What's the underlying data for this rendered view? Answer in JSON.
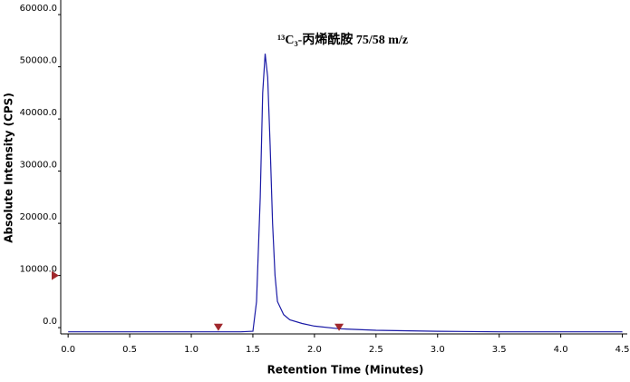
{
  "chart_data": {
    "type": "line",
    "title": "¹³C₃-丙烯酰胺 75/58 m/z",
    "x_label": "Retention Time (Minutes)",
    "y_label": "Absolute Intensity (CPS)",
    "x": [
      0,
      0.5,
      1.0,
      1.4,
      1.5,
      1.53,
      1.56,
      1.58,
      1.6,
      1.62,
      1.64,
      1.66,
      1.68,
      1.7,
      1.75,
      1.8,
      1.9,
      2.0,
      2.2,
      2.5,
      3.0,
      3.5,
      4.0,
      4.5
    ],
    "series": [
      {
        "color": "#1a1aa6",
        "values": [
          -800,
          -800,
          -800,
          -800,
          -700,
          5000,
          25000,
          45000,
          52500,
          48000,
          35000,
          20000,
          10000,
          5000,
          2500,
          1500,
          800,
          300,
          -200,
          -500,
          -700,
          -800,
          -800,
          -800
        ]
      }
    ],
    "peak_markers": {
      "x": [
        1.22,
        2.2
      ],
      "y": [
        -800,
        -800
      ],
      "color": "#a0282d"
    },
    "threshold_marker": {
      "y": 10000,
      "color": "#a0282d"
    },
    "xlim": [
      -0.06,
      4.54
    ],
    "ylim": [
      -1200,
      62800
    ],
    "xticks": [
      {
        "value": 0,
        "label": "0.0"
      },
      0.5,
      {
        "value": 1,
        "label": "1.0"
      },
      1.5,
      {
        "value": 2,
        "label": "2.0"
      },
      2.5,
      {
        "value": 3,
        "label": "3.0"
      },
      3.5,
      {
        "value": 4,
        "label": "4.0"
      },
      4.5
    ],
    "yticks": [
      {
        "value": 0,
        "label": "0.0"
      },
      {
        "value": 10000,
        "label": "10000.0"
      },
      {
        "value": 20000,
        "label": "20000.0"
      },
      {
        "value": 30000,
        "label": "30000.0"
      },
      {
        "value": 40000,
        "label": "40000.0"
      },
      {
        "value": 50000,
        "label": "50000.0"
      },
      {
        "value": 60000,
        "label": "60000.0"
      }
    ]
  }
}
